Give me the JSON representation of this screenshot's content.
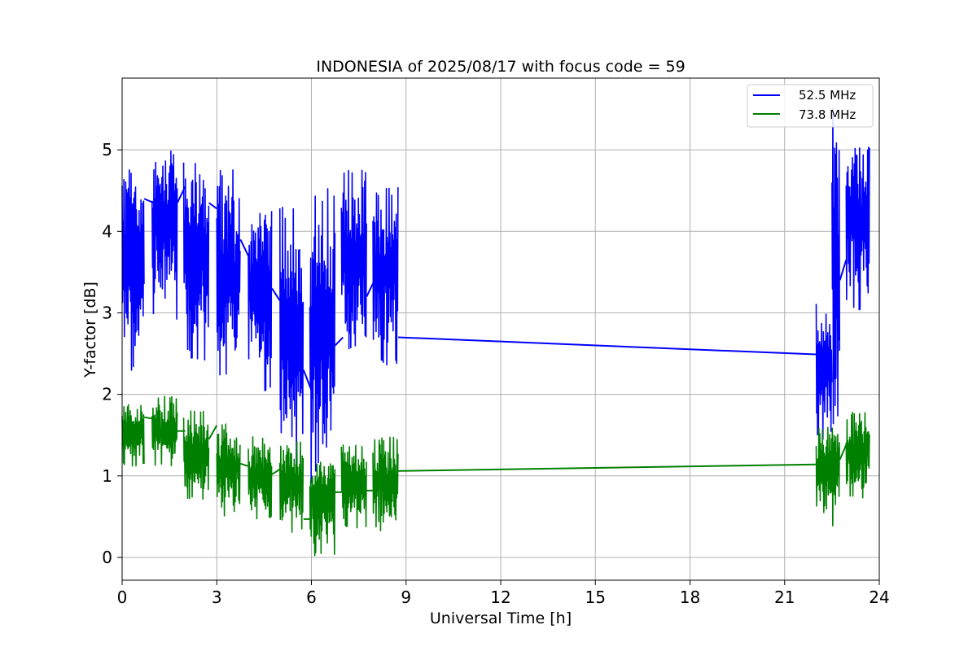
{
  "chart_data": {
    "type": "line",
    "title": "INDONESIA of 2025/08/17 with focus code = 59",
    "xlabel": "Universal Time [h]",
    "ylabel": "Y-factor [dB]",
    "xlim": [
      0,
      24
    ],
    "ylim": [
      -0.28,
      5.88
    ],
    "xticks": [
      0,
      3,
      6,
      9,
      12,
      15,
      18,
      21,
      24
    ],
    "xtick_labels": [
      "0",
      "3",
      "6",
      "9",
      "12",
      "15",
      "18",
      "21",
      "24"
    ],
    "yticks": [
      0,
      1,
      2,
      3,
      4,
      5
    ],
    "ytick_labels": [
      "0",
      "1",
      "2",
      "3",
      "4",
      "5"
    ],
    "grid": true,
    "legend_position": "top-right",
    "series": [
      {
        "name": "52.5 MHz",
        "color": "#0000ff",
        "bursts": [
          {
            "x0": 0.0,
            "x1": 0.7,
            "lo": 2.25,
            "hi": 5.15,
            "lo_core": 2.8,
            "hi_core": 4.6
          },
          {
            "x0": 0.95,
            "x1": 1.75,
            "lo": 2.9,
            "hi": 5.0,
            "lo_core": 3.4,
            "hi_core": 4.8
          },
          {
            "x0": 1.95,
            "x1": 2.75,
            "lo": 2.4,
            "hi": 4.85,
            "lo_core": 2.95,
            "hi_core": 4.65
          },
          {
            "x0": 3.0,
            "x1": 3.75,
            "lo": 2.15,
            "hi": 4.8,
            "lo_core": 2.65,
            "hi_core": 4.3
          },
          {
            "x0": 4.0,
            "x1": 4.75,
            "lo": 2.0,
            "hi": 4.25,
            "lo_core": 2.55,
            "hi_core": 4.05
          },
          {
            "x0": 5.0,
            "x1": 5.75,
            "lo": 1.0,
            "hi": 4.3,
            "lo_core": 1.85,
            "hi_core": 3.6
          },
          {
            "x0": 5.95,
            "x1": 6.75,
            "lo": 0.9,
            "hi": 4.55,
            "lo_core": 1.85,
            "hi_core": 3.9
          },
          {
            "x0": 6.95,
            "x1": 7.75,
            "lo": 2.55,
            "hi": 4.75,
            "lo_core": 2.85,
            "hi_core": 4.55
          },
          {
            "x0": 7.95,
            "x1": 8.75,
            "lo": 2.35,
            "hi": 4.55,
            "lo_core": 2.7,
            "hi_core": 4.45
          },
          {
            "x0": 22.0,
            "x1": 22.5,
            "lo": 1.45,
            "hi": 3.15,
            "lo_core": 1.8,
            "hi_core": 2.85
          },
          {
            "x0": 22.5,
            "x1": 22.75,
            "lo": 1.6,
            "hi": 5.55,
            "lo_core": 2.6,
            "hi_core": 4.9
          },
          {
            "x0": 22.95,
            "x1": 23.7,
            "lo": 3.0,
            "hi": 5.1,
            "lo_core": 3.3,
            "hi_core": 5.0
          }
        ],
        "connectors": [
          [
            [
              0.7,
              4.4
            ],
            [
              1.0,
              4.35
            ]
          ],
          [
            [
              1.75,
              4.35
            ],
            [
              2.0,
              4.55
            ]
          ],
          [
            [
              2.75,
              4.35
            ],
            [
              3.0,
              4.28
            ]
          ],
          [
            [
              3.75,
              3.9
            ],
            [
              4.0,
              3.7
            ]
          ],
          [
            [
              4.75,
              3.3
            ],
            [
              5.0,
              3.15
            ]
          ],
          [
            [
              5.75,
              2.3
            ],
            [
              6.0,
              2.05
            ]
          ],
          [
            [
              6.75,
              2.6
            ],
            [
              7.0,
              2.7
            ]
          ],
          [
            [
              7.75,
              3.2
            ],
            [
              8.0,
              3.4
            ]
          ],
          [
            [
              8.75,
              2.7
            ],
            [
              22.0,
              2.49
            ]
          ],
          [
            [
              22.75,
              3.4
            ],
            [
              22.95,
              3.65
            ]
          ]
        ]
      },
      {
        "name": "73.8 MHz",
        "color": "#008000",
        "bursts": [
          {
            "x0": 0.0,
            "x1": 0.7,
            "lo": 1.12,
            "hi": 1.98,
            "lo_core": 1.25,
            "hi_core": 1.82
          },
          {
            "x0": 0.95,
            "x1": 1.75,
            "lo": 1.12,
            "hi": 1.98,
            "lo_core": 1.22,
            "hi_core": 1.85
          },
          {
            "x0": 1.95,
            "x1": 2.75,
            "lo": 0.7,
            "hi": 1.82,
            "lo_core": 0.92,
            "hi_core": 1.65
          },
          {
            "x0": 3.0,
            "x1": 3.75,
            "lo": 0.5,
            "hi": 1.65,
            "lo_core": 0.72,
            "hi_core": 1.48
          },
          {
            "x0": 4.0,
            "x1": 4.75,
            "lo": 0.45,
            "hi": 1.5,
            "lo_core": 0.65,
            "hi_core": 1.35
          },
          {
            "x0": 5.0,
            "x1": 5.75,
            "lo": 0.3,
            "hi": 1.45,
            "lo_core": 0.55,
            "hi_core": 1.3
          },
          {
            "x0": 5.95,
            "x1": 6.75,
            "lo": 0.0,
            "hi": 1.3,
            "lo_core": 0.3,
            "hi_core": 1.12
          },
          {
            "x0": 6.95,
            "x1": 7.75,
            "lo": 0.35,
            "hi": 1.38,
            "lo_core": 0.55,
            "hi_core": 1.25
          },
          {
            "x0": 7.95,
            "x1": 8.75,
            "lo": 0.32,
            "hi": 1.48,
            "lo_core": 0.52,
            "hi_core": 1.3
          },
          {
            "x0": 22.0,
            "x1": 22.75,
            "lo": 0.3,
            "hi": 1.6,
            "lo_core": 0.75,
            "hi_core": 1.45
          },
          {
            "x0": 22.95,
            "x1": 23.7,
            "lo": 0.72,
            "hi": 1.78,
            "lo_core": 0.95,
            "hi_core": 1.65
          }
        ],
        "connectors": [
          [
            [
              0.7,
              1.72
            ],
            [
              1.0,
              1.7
            ]
          ],
          [
            [
              1.75,
              1.55
            ],
            [
              2.0,
              1.55
            ]
          ],
          [
            [
              2.75,
              1.45
            ],
            [
              3.0,
              1.62
            ]
          ],
          [
            [
              3.75,
              1.15
            ],
            [
              4.0,
              1.12
            ]
          ],
          [
            [
              4.75,
              1.02
            ],
            [
              5.0,
              1.08
            ]
          ],
          [
            [
              5.75,
              0.47
            ],
            [
              6.0,
              0.47
            ]
          ],
          [
            [
              6.75,
              0.8
            ],
            [
              7.0,
              0.8
            ]
          ],
          [
            [
              7.75,
              0.82
            ],
            [
              8.0,
              0.82
            ]
          ],
          [
            [
              8.75,
              1.06
            ],
            [
              22.0,
              1.14
            ]
          ],
          [
            [
              22.75,
              1.2
            ],
            [
              22.95,
              1.38
            ]
          ]
        ]
      }
    ]
  }
}
